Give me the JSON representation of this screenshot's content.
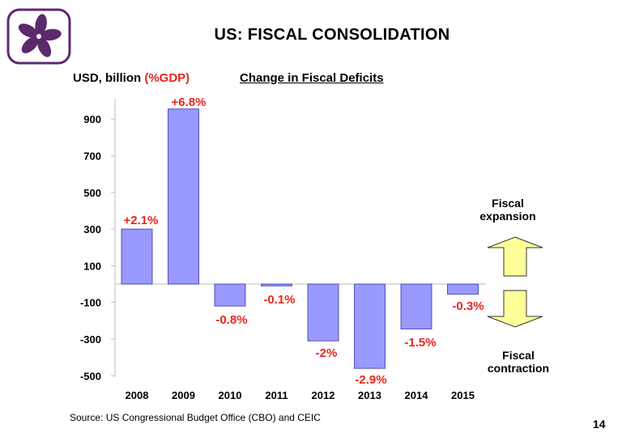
{
  "slide": {
    "title": "US: FISCAL CONSOLIDATION",
    "source": "Source: US Congressional Budget Office (CBO) and CEIC",
    "page_number": "14",
    "logo_icon": "bauhinia-flower-icon"
  },
  "chart_data": {
    "type": "bar",
    "title": "Change in Fiscal Deficits",
    "ylabel": "USD, billion",
    "ylabel_suffix": "(%GDP)",
    "categories": [
      "2008",
      "2009",
      "2010",
      "2011",
      "2012",
      "2013",
      "2014",
      "2015"
    ],
    "values": [
      300,
      955,
      -120,
      -10,
      -310,
      -460,
      -245,
      -55
    ],
    "data_labels": [
      "+2.1%",
      "+6.8%",
      "-0.8%",
      "-0.1%",
      "-2%",
      "-2.9%",
      "-1.5%",
      "-0.3%"
    ],
    "yticks": [
      900,
      700,
      500,
      300,
      100,
      -100,
      -300,
      -500
    ],
    "ylim": [
      -500,
      1000
    ],
    "grid": false,
    "bar_color": "#9999ff",
    "label_color": "#e8261e",
    "arrow_color": "#ffff99",
    "annotations": {
      "expansion": [
        "Fiscal",
        "expansion"
      ],
      "contraction": [
        "Fiscal",
        "contraction"
      ]
    }
  }
}
